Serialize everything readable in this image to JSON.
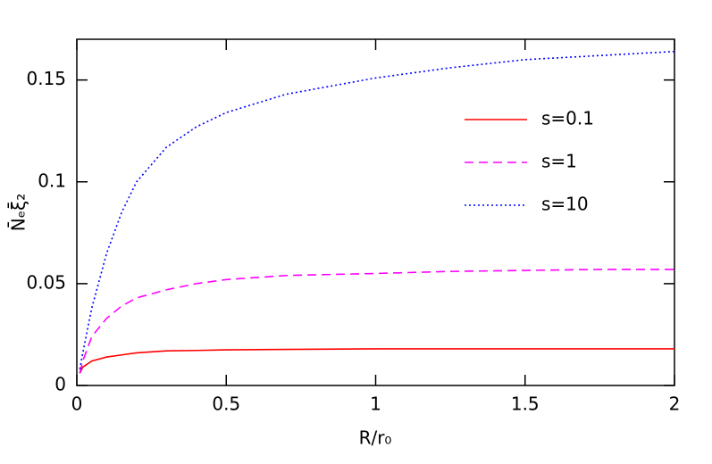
{
  "chart_data": {
    "type": "line",
    "xlabel": "R/r₀",
    "ylabel": "N̄ₑξ̄₂",
    "x": [
      0.01,
      0.02,
      0.05,
      0.1,
      0.15,
      0.2,
      0.3,
      0.4,
      0.5,
      0.7,
      1,
      1.25,
      1.5,
      1.75,
      2
    ],
    "series": [
      {
        "name": "s=0.1",
        "color": "#ff0000",
        "dash": "solid",
        "values": [
          0.006,
          0.009,
          0.012,
          0.014,
          0.015,
          0.016,
          0.017,
          0.0172,
          0.0175,
          0.0177,
          0.018,
          0.018,
          0.018,
          0.018,
          0.018
        ]
      },
      {
        "name": "s=1",
        "color": "#ff00ff",
        "dash": "dashed",
        "values": [
          0.006,
          0.012,
          0.024,
          0.033,
          0.039,
          0.043,
          0.047,
          0.05,
          0.052,
          0.054,
          0.055,
          0.056,
          0.0565,
          0.057,
          0.057
        ]
      },
      {
        "name": "s=10",
        "color": "#0000ff",
        "dash": "dotted",
        "values": [
          0.008,
          0.016,
          0.038,
          0.065,
          0.085,
          0.1,
          0.117,
          0.127,
          0.134,
          0.143,
          0.151,
          0.156,
          0.16,
          0.162,
          0.164
        ]
      }
    ],
    "xlim": [
      0,
      2
    ],
    "ylim": [
      0,
      0.17
    ],
    "xticks": [
      0,
      0.5,
      1,
      1.5,
      2
    ],
    "yticks": [
      0,
      0.05,
      0.1,
      0.15
    ],
    "legend": "upper right",
    "grid": false
  }
}
